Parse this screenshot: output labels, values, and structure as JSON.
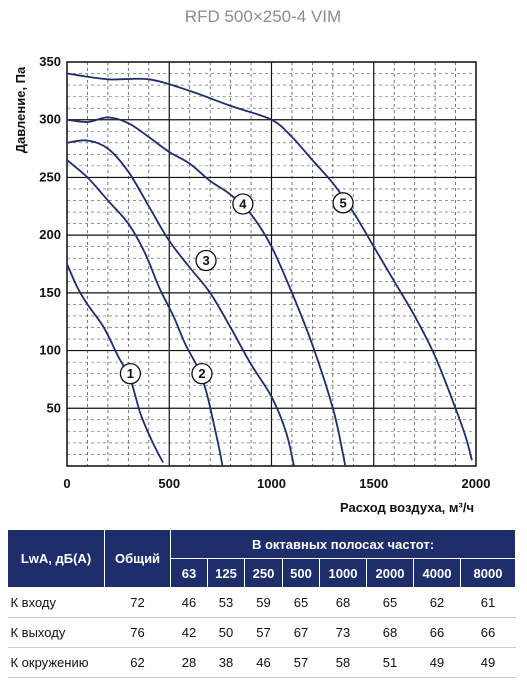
{
  "chart_data": {
    "type": "line",
    "title": "RFD 500×250-4 VIM",
    "xlabel": "Расход воздуха, м³/ч",
    "ylabel": "Давление, Па",
    "xlim": [
      0,
      2000
    ],
    "ylim": [
      0,
      350
    ],
    "xticks": [
      0,
      500,
      1000,
      1500,
      2000
    ],
    "yticks": [
      50,
      100,
      150,
      200,
      250,
      300,
      350
    ],
    "grid": true,
    "minor_grid_x_step": 100,
    "series": [
      {
        "name": "1",
        "label_at": [
          310,
          80
        ],
        "points": [
          [
            0,
            175
          ],
          [
            50,
            155
          ],
          [
            100,
            140
          ],
          [
            180,
            120
          ],
          [
            250,
            95
          ],
          [
            310,
            75
          ],
          [
            360,
            45
          ],
          [
            420,
            20
          ],
          [
            470,
            3
          ]
        ]
      },
      {
        "name": "2",
        "label_at": [
          660,
          80
        ],
        "points": [
          [
            0,
            265
          ],
          [
            100,
            250
          ],
          [
            200,
            230
          ],
          [
            300,
            210
          ],
          [
            380,
            185
          ],
          [
            450,
            155
          ],
          [
            520,
            130
          ],
          [
            580,
            105
          ],
          [
            640,
            85
          ],
          [
            680,
            65
          ],
          [
            720,
            35
          ],
          [
            750,
            10
          ],
          [
            760,
            0
          ]
        ]
      },
      {
        "name": "3",
        "label_at": [
          680,
          178
        ],
        "points": [
          [
            0,
            280
          ],
          [
            100,
            282
          ],
          [
            200,
            275
          ],
          [
            300,
            255
          ],
          [
            400,
            225
          ],
          [
            500,
            195
          ],
          [
            600,
            172
          ],
          [
            700,
            150
          ],
          [
            800,
            120
          ],
          [
            900,
            88
          ],
          [
            1000,
            60
          ],
          [
            1070,
            30
          ],
          [
            1110,
            0
          ]
        ]
      },
      {
        "name": "4",
        "label_at": [
          860,
          227
        ],
        "points": [
          [
            0,
            300
          ],
          [
            100,
            298
          ],
          [
            200,
            302
          ],
          [
            300,
            297
          ],
          [
            400,
            285
          ],
          [
            500,
            272
          ],
          [
            600,
            262
          ],
          [
            700,
            247
          ],
          [
            800,
            235
          ],
          [
            900,
            218
          ],
          [
            1000,
            190
          ],
          [
            1100,
            150
          ],
          [
            1200,
            105
          ],
          [
            1300,
            50
          ],
          [
            1350,
            10
          ],
          [
            1360,
            0
          ]
        ]
      },
      {
        "name": "5",
        "label_at": [
          1350,
          228
        ],
        "points": [
          [
            0,
            340
          ],
          [
            200,
            335
          ],
          [
            400,
            335
          ],
          [
            600,
            325
          ],
          [
            800,
            312
          ],
          [
            1000,
            300
          ],
          [
            1100,
            285
          ],
          [
            1200,
            265
          ],
          [
            1300,
            245
          ],
          [
            1400,
            220
          ],
          [
            1500,
            190
          ],
          [
            1600,
            160
          ],
          [
            1700,
            130
          ],
          [
            1800,
            95
          ],
          [
            1900,
            50
          ],
          [
            1950,
            25
          ],
          [
            1980,
            5
          ]
        ]
      }
    ]
  },
  "table": {
    "headers": {
      "lwa": "LwA, дБ(A)",
      "total": "Общий",
      "octave": "В октавных полосах частот:",
      "bands": [
        "63",
        "125",
        "250",
        "500",
        "1000",
        "2000",
        "4000",
        "8000"
      ]
    },
    "rows": [
      {
        "label": "К входу",
        "total": "72",
        "values": [
          "46",
          "53",
          "59",
          "65",
          "68",
          "65",
          "62",
          "61"
        ]
      },
      {
        "label": "К выходу",
        "total": "76",
        "values": [
          "42",
          "50",
          "57",
          "67",
          "73",
          "68",
          "66",
          "66"
        ]
      },
      {
        "label": "К окружению",
        "total": "62",
        "values": [
          "28",
          "38",
          "46",
          "57",
          "58",
          "51",
          "49",
          "49"
        ]
      }
    ]
  },
  "colors": {
    "curve": "#1e2e6b",
    "grid": "#111111",
    "header_bg": "#1e2e6b",
    "title": "#8c8c8c"
  }
}
